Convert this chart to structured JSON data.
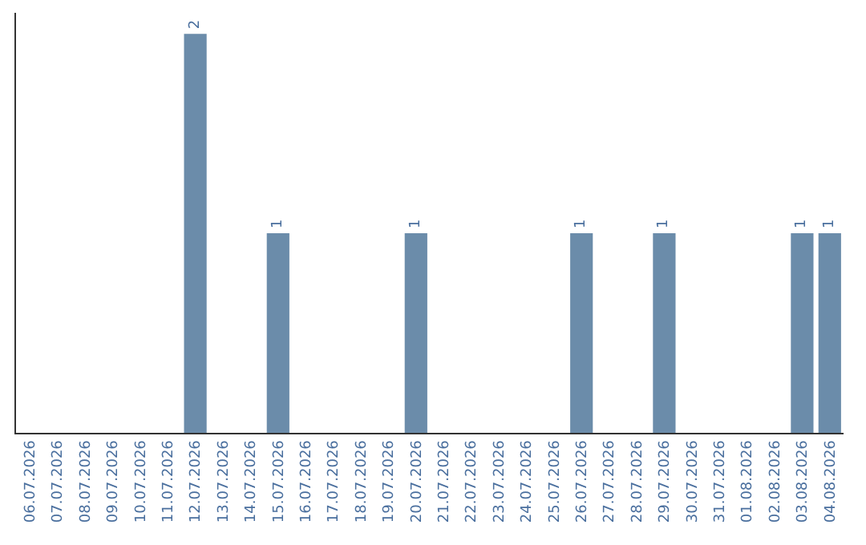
{
  "chart_data": {
    "type": "bar",
    "categories": [
      "06.07.2026",
      "07.07.2026",
      "08.07.2026",
      "09.07.2026",
      "10.07.2026",
      "11.07.2026",
      "12.07.2026",
      "13.07.2026",
      "14.07.2026",
      "15.07.2026",
      "16.07.2026",
      "17.07.2026",
      "18.07.2026",
      "19.07.2026",
      "20.07.2026",
      "21.07.2026",
      "22.07.2026",
      "23.07.2026",
      "24.07.2026",
      "25.07.2026",
      "26.07.2026",
      "27.07.2026",
      "28.07.2026",
      "29.07.2026",
      "30.07.2026",
      "31.07.2026",
      "01.08.2026",
      "02.08.2026",
      "03.08.2026",
      "04.08.2026"
    ],
    "values": [
      0,
      0,
      0,
      0,
      0,
      0,
      2,
      0,
      0,
      1,
      0,
      0,
      0,
      0,
      1,
      0,
      0,
      0,
      0,
      0,
      1,
      0,
      0,
      1,
      0,
      0,
      0,
      0,
      1,
      1
    ],
    "value_labels": [
      null,
      null,
      null,
      null,
      null,
      null,
      "2",
      null,
      null,
      "1",
      null,
      null,
      null,
      null,
      "1",
      null,
      null,
      null,
      null,
      null,
      "1",
      null,
      null,
      "1",
      null,
      null,
      null,
      null,
      "1",
      "1"
    ],
    "color": "#6b8caa",
    "legend": false,
    "tick_labels": "x"
  }
}
